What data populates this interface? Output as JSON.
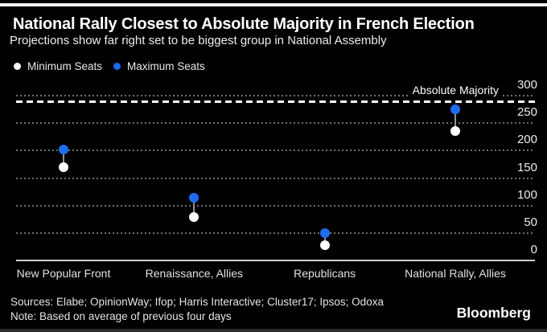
{
  "header": {
    "title": "National Rally Closest to Absolute Majority in French Election",
    "subtitle": "Projections show far right set to be biggest group in National Assembly"
  },
  "legend": {
    "min_label": "Minimum Seats",
    "max_label": "Maximum Seats"
  },
  "chart_data": {
    "type": "scatter",
    "subtype": "dumbbell",
    "categories": [
      "New Popular Front",
      "Renaissance, Allies",
      "Republicans",
      "National Rally, Allies"
    ],
    "series": [
      {
        "name": "Minimum Seats",
        "color": "#ffffff",
        "values": [
          168,
          77,
          26,
          234
        ]
      },
      {
        "name": "Maximum Seats",
        "color": "#1e6cf0",
        "values": [
          200,
          112,
          48,
          274
        ]
      }
    ],
    "yticks": [
      0,
      50,
      100,
      150,
      200,
      250,
      300
    ],
    "ylim": [
      0,
      300
    ],
    "y_axis_side": "right",
    "grid": "dotted-horizontal",
    "legend_position": "top-left",
    "annotation": {
      "label": "Absolute Majority",
      "value": 289,
      "style": "white-dashed-line"
    }
  },
  "footer": {
    "sources": "Sources: Elabe; OpinionWay; Ifop; Harris Interactive; Cluster17; Ipsos; Odoxa",
    "note": "Note: Based on average of previous four days",
    "brand": "Bloomberg"
  },
  "colors": {
    "background": "#000000",
    "grid": "#707070",
    "baseline": "#cfcfcf",
    "connector": "#909090",
    "min_dot": "#ffffff",
    "max_dot": "#1e6cf0",
    "annotation_line": "#ffffff"
  }
}
